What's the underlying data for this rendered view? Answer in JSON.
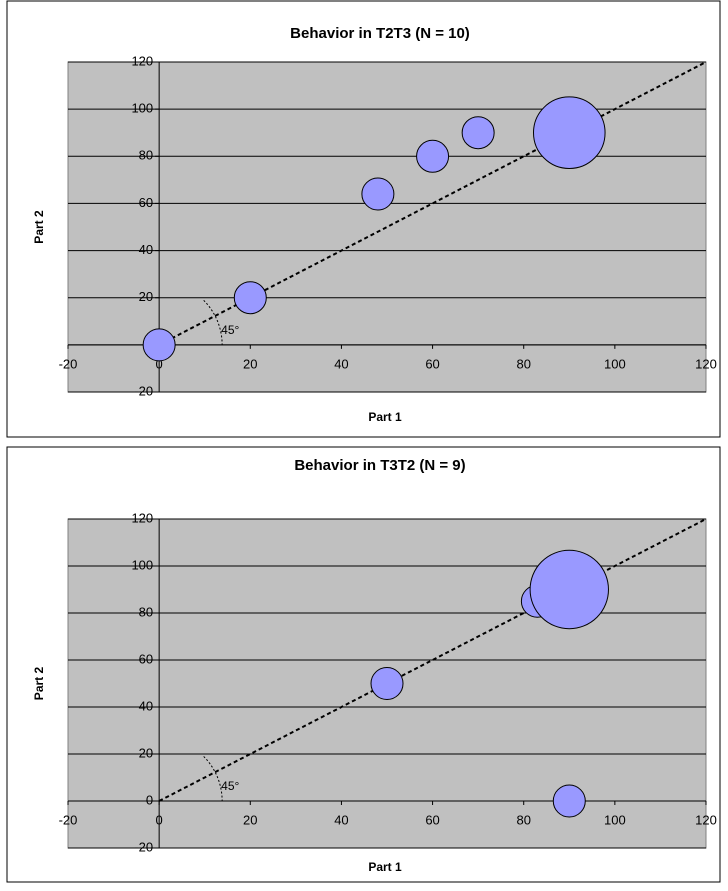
{
  "chart_data": [
    {
      "type": "bubble",
      "title": "Behavior in T2T3 (N = 10)",
      "x_label": "Part 1",
      "y_label": "Part 2",
      "x": [
        0,
        20,
        48,
        60,
        70,
        90
      ],
      "values": [
        0,
        20,
        64,
        80,
        90,
        90
      ],
      "sizes": [
        1,
        1,
        1,
        1,
        1,
        5
      ],
      "color": "#9999ff",
      "xlim": [
        -20,
        120
      ],
      "ylim": [
        -20,
        120
      ],
      "xticks": [
        -20,
        0,
        20,
        40,
        60,
        80,
        100,
        120
      ],
      "yticks": [
        -20,
        0,
        20,
        40,
        60,
        80,
        100,
        120
      ],
      "grid": true,
      "annotation": "45°"
    },
    {
      "type": "bubble",
      "title": "Behavior in T3T2 (N = 9)",
      "x_label": "Part 1",
      "y_label": "Part 2",
      "x": [
        50,
        83,
        90,
        90
      ],
      "values": [
        50,
        85,
        90,
        0
      ],
      "sizes": [
        1,
        1,
        6,
        1
      ],
      "color": "#9999ff",
      "xlim": [
        -20,
        120
      ],
      "ylim": [
        -20,
        120
      ],
      "xticks": [
        -20,
        0,
        20,
        40,
        60,
        80,
        100,
        120
      ],
      "yticks": [
        -20,
        0,
        20,
        40,
        60,
        80,
        100,
        120
      ],
      "grid": true,
      "annotation": "45°"
    }
  ]
}
